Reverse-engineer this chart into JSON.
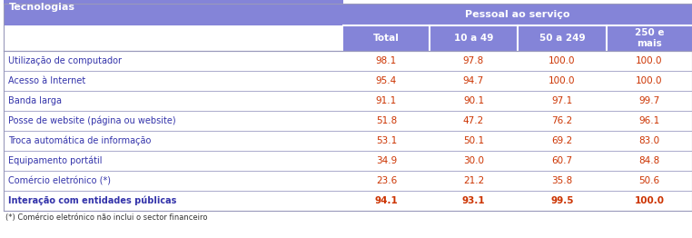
{
  "header_bg": "#8484d8",
  "header_top_text": "Pessoal ao serviço",
  "header_top_text_color": "#ffffff",
  "col_headers": [
    "Total",
    "10 a 49",
    "50 a 249",
    "250 e\nmais"
  ],
  "col_header_text_color": "#ffffff",
  "row_header": "Tecnologias",
  "row_header_text_color": "#ffffff",
  "rows": [
    {
      "label": "Utilização de computador",
      "values": [
        "98.1",
        "97.8",
        "100.0",
        "100.0"
      ],
      "bold": false
    },
    {
      "label": "Acesso à Internet",
      "values": [
        "95.4",
        "94.7",
        "100.0",
        "100.0"
      ],
      "bold": false
    },
    {
      "label": "Banda larga",
      "values": [
        "91.1",
        "90.1",
        "97.1",
        "99.7"
      ],
      "bold": false
    },
    {
      "label": "Posse de website (página ou website)",
      "values": [
        "51.8",
        "47.2",
        "76.2",
        "96.1"
      ],
      "bold": false
    },
    {
      "label": "Troca automática de informação",
      "values": [
        "53.1",
        "50.1",
        "69.2",
        "83.0"
      ],
      "bold": false
    },
    {
      "label": "Equipamento portátil",
      "values": [
        "34.9",
        "30.0",
        "60.7",
        "84.8"
      ],
      "bold": false
    },
    {
      "label": "Comércio eletrónico (*)",
      "values": [
        "23.6",
        "21.2",
        "35.8",
        "50.6"
      ],
      "bold": false
    },
    {
      "label": "Interação com entidades públicas",
      "values": [
        "94.1",
        "93.1",
        "99.5",
        "100.0"
      ],
      "bold": true
    }
  ],
  "footnote": "(*) Comércio eletrónico não inclui o sector financeiro",
  "label_color": "#3333aa",
  "value_color": "#cc3300",
  "row_sep_color": "#aaaacc",
  "col_divider_color": "#ffffff",
  "outer_border_color": "#9999bb",
  "footnote_color": "#333333",
  "bg_color": "#ffffff",
  "figw": 7.62,
  "figh": 2.62,
  "dpi": 100
}
